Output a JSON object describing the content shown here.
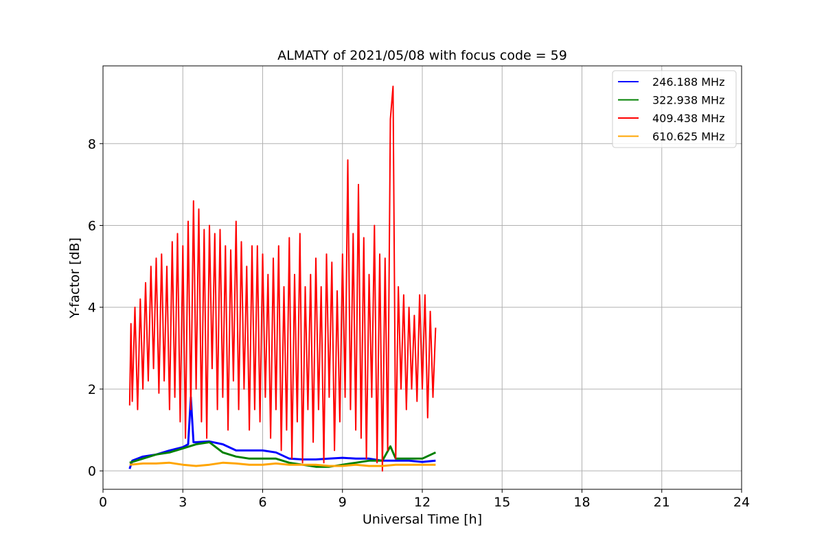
{
  "chart_data": {
    "type": "line",
    "title": "ALMATY of 2021/05/08 with focus code = 59",
    "xlabel": "Universal Time [h]",
    "ylabel": "Y-factor [dB]",
    "xlim": [
      0,
      24
    ],
    "ylim": [
      -0.45,
      9.9
    ],
    "xticks": [
      0,
      3,
      6,
      9,
      12,
      15,
      18,
      21,
      24
    ],
    "xtick_labels": [
      "0",
      "3",
      "6",
      "9",
      "12",
      "15",
      "18",
      "21",
      "24"
    ],
    "yticks": [
      0,
      2,
      4,
      6,
      8
    ],
    "ytick_labels": [
      "0",
      "2",
      "4",
      "6",
      "8"
    ],
    "grid": true,
    "legend_position": "top-right",
    "series": [
      {
        "name": "246.188 MHz",
        "color": "#0000ff",
        "x": [
          1.0,
          1.1,
          1.5,
          2.0,
          2.5,
          3.0,
          3.2,
          3.3,
          3.4,
          3.5,
          4.0,
          4.5,
          5.0,
          5.5,
          6.0,
          6.5,
          7.0,
          7.5,
          8.0,
          8.5,
          9.0,
          9.5,
          10.0,
          10.5,
          11.0,
          11.5,
          12.0,
          12.5
        ],
        "y": [
          0.05,
          0.25,
          0.35,
          0.4,
          0.5,
          0.58,
          0.65,
          1.8,
          0.7,
          0.7,
          0.72,
          0.65,
          0.5,
          0.5,
          0.5,
          0.45,
          0.3,
          0.28,
          0.28,
          0.3,
          0.32,
          0.3,
          0.3,
          0.25,
          0.25,
          0.25,
          0.22,
          0.25
        ]
      },
      {
        "name": "322.938 MHz",
        "color": "#008000",
        "x": [
          1.0,
          1.5,
          2.0,
          2.5,
          3.0,
          3.5,
          4.0,
          4.5,
          5.0,
          5.5,
          6.0,
          6.5,
          7.0,
          7.5,
          8.0,
          8.5,
          9.0,
          9.5,
          10.0,
          10.5,
          10.8,
          11.0,
          11.5,
          12.0,
          12.5
        ],
        "y": [
          0.2,
          0.3,
          0.4,
          0.45,
          0.55,
          0.65,
          0.7,
          0.45,
          0.35,
          0.3,
          0.3,
          0.3,
          0.2,
          0.15,
          0.1,
          0.1,
          0.15,
          0.2,
          0.25,
          0.25,
          0.6,
          0.3,
          0.3,
          0.3,
          0.45
        ]
      },
      {
        "name": "409.438 MHz",
        "color": "#ff0000",
        "x": [
          1.0,
          1.05,
          1.1,
          1.2,
          1.3,
          1.4,
          1.5,
          1.6,
          1.7,
          1.8,
          1.9,
          2.0,
          2.1,
          2.2,
          2.3,
          2.4,
          2.5,
          2.6,
          2.7,
          2.8,
          2.9,
          3.0,
          3.1,
          3.2,
          3.3,
          3.4,
          3.5,
          3.6,
          3.7,
          3.8,
          3.9,
          4.0,
          4.1,
          4.2,
          4.3,
          4.4,
          4.5,
          4.6,
          4.7,
          4.8,
          4.9,
          5.0,
          5.1,
          5.2,
          5.3,
          5.4,
          5.5,
          5.6,
          5.7,
          5.8,
          5.9,
          6.0,
          6.1,
          6.2,
          6.3,
          6.4,
          6.5,
          6.6,
          6.7,
          6.8,
          6.9,
          7.0,
          7.1,
          7.2,
          7.3,
          7.4,
          7.5,
          7.6,
          7.7,
          7.8,
          7.9,
          8.0,
          8.1,
          8.2,
          8.3,
          8.4,
          8.5,
          8.6,
          8.7,
          8.8,
          8.9,
          9.0,
          9.1,
          9.2,
          9.3,
          9.4,
          9.5,
          9.6,
          9.7,
          9.8,
          9.9,
          10.0,
          10.1,
          10.2,
          10.3,
          10.4,
          10.5,
          10.6,
          10.7,
          10.8,
          10.9,
          11.0,
          11.1,
          11.2,
          11.3,
          11.4,
          11.5,
          11.6,
          11.7,
          11.8,
          11.9,
          12.0,
          12.1,
          12.2,
          12.3,
          12.4,
          12.5
        ],
        "y": [
          1.6,
          3.6,
          1.7,
          4.0,
          1.5,
          4.2,
          2.0,
          4.6,
          2.2,
          5.0,
          2.5,
          5.2,
          1.9,
          5.3,
          2.2,
          5.0,
          1.5,
          5.6,
          1.8,
          5.8,
          1.2,
          5.5,
          0.8,
          6.1,
          1.5,
          6.6,
          2.0,
          6.4,
          1.2,
          5.9,
          0.8,
          6.0,
          2.5,
          5.8,
          1.5,
          5.9,
          1.8,
          5.5,
          1.0,
          5.4,
          2.2,
          6.1,
          1.5,
          5.6,
          2.0,
          5.0,
          1.0,
          5.5,
          1.5,
          5.5,
          1.2,
          5.3,
          1.8,
          4.8,
          0.8,
          5.2,
          1.5,
          5.5,
          0.5,
          4.5,
          1.0,
          5.7,
          0.3,
          4.8,
          1.2,
          5.8,
          0.2,
          4.5,
          1.5,
          4.8,
          0.7,
          5.2,
          1.5,
          4.5,
          0.2,
          5.3,
          1.8,
          5.1,
          0.5,
          4.4,
          1.2,
          5.3,
          1.8,
          7.6,
          1.5,
          5.8,
          1.0,
          7.0,
          0.8,
          5.7,
          0.3,
          4.8,
          1.8,
          6.0,
          0.2,
          5.3,
          0.0,
          5.2,
          0.5,
          8.6,
          9.4,
          0.3,
          4.5,
          2.0,
          4.3,
          1.5,
          4.0,
          2.0,
          3.8,
          1.7,
          4.3,
          2.0,
          4.3,
          1.3,
          3.9,
          1.8,
          3.5
        ]
      },
      {
        "name": "610.625 MHz",
        "color": "#ffa500",
        "x": [
          1.0,
          1.5,
          2.0,
          2.5,
          3.0,
          3.5,
          4.0,
          4.5,
          5.0,
          5.5,
          6.0,
          6.5,
          7.0,
          7.5,
          8.0,
          8.5,
          9.0,
          9.5,
          10.0,
          10.5,
          11.0,
          11.5,
          12.0,
          12.5
        ],
        "y": [
          0.15,
          0.18,
          0.18,
          0.2,
          0.15,
          0.12,
          0.15,
          0.2,
          0.18,
          0.15,
          0.15,
          0.18,
          0.15,
          0.15,
          0.15,
          0.12,
          0.12,
          0.15,
          0.12,
          0.12,
          0.15,
          0.15,
          0.15,
          0.15
        ]
      }
    ]
  }
}
